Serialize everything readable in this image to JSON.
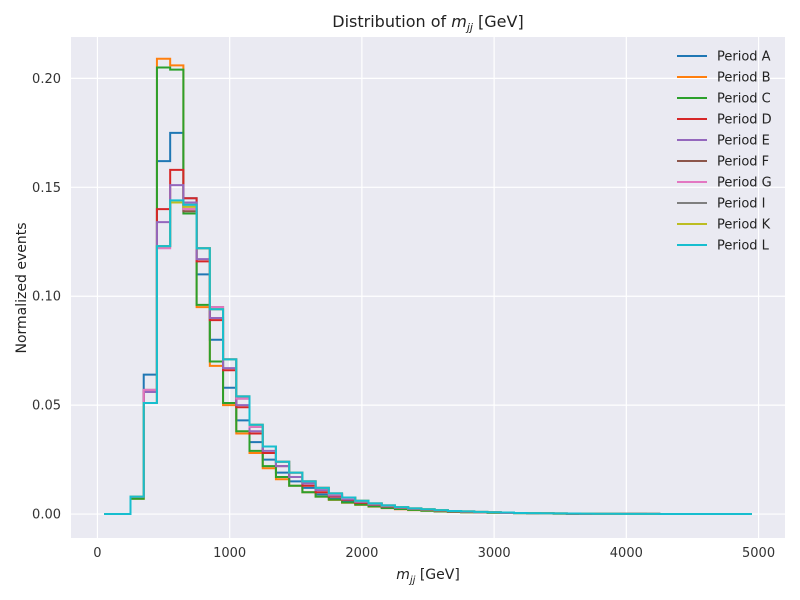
{
  "chart_data": {
    "type": "line",
    "title": "Distribution of m_jj [GeV]",
    "title_parts": {
      "prefix": "Distribution of ",
      "var": "m",
      "sub": "jj",
      "suffix": " [GeV]"
    },
    "xlabel": "m_jj [GeV]",
    "xlabel_parts": {
      "var": "m",
      "sub": "jj",
      "suffix": " [GeV]"
    },
    "ylabel": "Normalized events",
    "xlim": [
      -200,
      5200
    ],
    "ylim": [
      -0.011,
      0.219
    ],
    "xticks": [
      0,
      1000,
      2000,
      3000,
      4000,
      5000
    ],
    "xtick_labels": [
      "0",
      "1000",
      "2000",
      "3000",
      "4000",
      "5000"
    ],
    "yticks": [
      0.0,
      0.05,
      0.1,
      0.15,
      0.2
    ],
    "ytick_labels": [
      "0.00",
      "0.05",
      "0.10",
      "0.15",
      "0.20"
    ],
    "grid": true,
    "legend_position": "top-right",
    "bin_edges": [
      50,
      150,
      250,
      350,
      450,
      550,
      650,
      750,
      850,
      950,
      1050,
      1150,
      1250,
      1350,
      1450,
      1550,
      1650,
      1750,
      1850,
      1950,
      2050,
      2150,
      2250,
      2350,
      2450,
      2550,
      2650,
      2750,
      2850,
      2950,
      3050,
      3150,
      3250,
      3350,
      3450,
      3550,
      3650,
      3750,
      3850,
      3950,
      4050,
      4150,
      4250,
      4350,
      4450,
      4550,
      4650,
      4750,
      4850,
      4950
    ],
    "series": [
      {
        "name": "Period A",
        "color": "#1f77b4",
        "values": [
          0,
          0,
          0.008,
          0.064,
          0.162,
          0.175,
          0.145,
          0.11,
          0.08,
          0.058,
          0.043,
          0.033,
          0.025,
          0.019,
          0.015,
          0.012,
          0.009,
          0.007,
          0.0058,
          0.0046,
          0.0037,
          0.003,
          0.0024,
          0.002,
          0.0016,
          0.0013,
          0.0011,
          0.0009,
          0.0007,
          0.0006,
          0.0005,
          0.0004,
          0.0003,
          0.00026,
          0.0002,
          0.00016,
          0.00013,
          0.0001,
          8e-05,
          6e-05,
          5e-05,
          4e-05,
          3e-05,
          2e-05,
          2e-05,
          1e-05,
          1e-05,
          1e-05,
          0
        ]
      },
      {
        "name": "Period B",
        "color": "#ff7f0e",
        "values": [
          0,
          0,
          0.007,
          0.051,
          0.209,
          0.206,
          0.14,
          0.095,
          0.068,
          0.05,
          0.037,
          0.028,
          0.021,
          0.016,
          0.013,
          0.01,
          0.008,
          0.0065,
          0.0052,
          0.0042,
          0.0034,
          0.0027,
          0.0022,
          0.0018,
          0.0015,
          0.0012,
          0.001,
          0.0008,
          0.0007,
          0.0006,
          0.0005,
          0.0004,
          0.0003,
          0.00025,
          0.0002,
          0.00016,
          0.00013,
          0.0001,
          8e-05,
          6e-05,
          5e-05,
          4e-05,
          3e-05,
          2e-05,
          2e-05,
          1e-05,
          1e-05,
          1e-05,
          0
        ]
      },
      {
        "name": "Period C",
        "color": "#2ca02c",
        "values": [
          0,
          0,
          0.007,
          0.051,
          0.205,
          0.204,
          0.138,
          0.096,
          0.07,
          0.051,
          0.038,
          0.029,
          0.022,
          0.017,
          0.013,
          0.01,
          0.008,
          0.0066,
          0.0053,
          0.0043,
          0.0035,
          0.0028,
          0.0023,
          0.0019,
          0.0015,
          0.0012,
          0.001,
          0.0008,
          0.0007,
          0.0006,
          0.0005,
          0.0004,
          0.0003,
          0.00025,
          0.0002,
          0.00016,
          0.00013,
          0.0001,
          8e-05,
          6e-05,
          5e-05,
          4e-05,
          3e-05,
          2e-05,
          2e-05,
          1e-05,
          1e-05,
          1e-05,
          0
        ]
      },
      {
        "name": "Period D",
        "color": "#d62728",
        "values": [
          0,
          0,
          0.008,
          0.056,
          0.14,
          0.158,
          0.145,
          0.116,
          0.089,
          0.066,
          0.049,
          0.037,
          0.028,
          0.022,
          0.017,
          0.013,
          0.01,
          0.008,
          0.0065,
          0.0052,
          0.0042,
          0.0034,
          0.0028,
          0.0023,
          0.0019,
          0.0015,
          0.0012,
          0.001,
          0.0008,
          0.0007,
          0.0006,
          0.0005,
          0.0004,
          0.0003,
          0.00025,
          0.0002,
          0.00016,
          0.00013,
          0.0001,
          8e-05,
          6e-05,
          5e-05,
          4e-05,
          3e-05,
          2e-05,
          2e-05,
          1e-05,
          1e-05,
          0
        ]
      },
      {
        "name": "Period E",
        "color": "#9467bd",
        "values": [
          0,
          0,
          0.008,
          0.056,
          0.134,
          0.151,
          0.143,
          0.117,
          0.09,
          0.067,
          0.05,
          0.038,
          0.029,
          0.022,
          0.017,
          0.014,
          0.011,
          0.0085,
          0.0068,
          0.0055,
          0.0044,
          0.0036,
          0.0029,
          0.0024,
          0.002,
          0.0016,
          0.0013,
          0.0011,
          0.0009,
          0.0007,
          0.0006,
          0.0005,
          0.0004,
          0.00032,
          0.00026,
          0.0002,
          0.00016,
          0.00013,
          0.0001,
          8e-05,
          6e-05,
          5e-05,
          4e-05,
          3e-05,
          2e-05,
          2e-05,
          1e-05,
          1e-05,
          0
        ]
      },
      {
        "name": "Period F",
        "color": "#8c564b",
        "values": [
          0,
          0,
          0.008,
          0.057,
          0.123,
          0.143,
          0.139,
          0.122,
          0.095,
          0.071,
          0.053,
          0.04,
          0.031,
          0.024,
          0.019,
          0.015,
          0.012,
          0.009,
          0.0073,
          0.0059,
          0.0047,
          0.0038,
          0.0031,
          0.0025,
          0.0021,
          0.0017,
          0.0014,
          0.0011,
          0.0009,
          0.0008,
          0.0006,
          0.0005,
          0.0004,
          0.00034,
          0.00027,
          0.00022,
          0.00018,
          0.00014,
          0.00011,
          9e-05,
          7e-05,
          5e-05,
          4e-05,
          3e-05,
          2e-05,
          2e-05,
          1e-05,
          1e-05,
          0
        ]
      },
      {
        "name": "Period G",
        "color": "#e377c2",
        "values": [
          0,
          0,
          0.008,
          0.057,
          0.122,
          0.143,
          0.14,
          0.122,
          0.095,
          0.071,
          0.053,
          0.04,
          0.031,
          0.024,
          0.019,
          0.015,
          0.012,
          0.009,
          0.0073,
          0.0059,
          0.0047,
          0.0038,
          0.0031,
          0.0025,
          0.0021,
          0.0017,
          0.0014,
          0.0011,
          0.0009,
          0.0008,
          0.0006,
          0.0005,
          0.0004,
          0.00034,
          0.00027,
          0.00022,
          0.00018,
          0.00014,
          0.00011,
          9e-05,
          7e-05,
          5e-05,
          4e-05,
          3e-05,
          2e-05,
          2e-05,
          1e-05,
          1e-05,
          0
        ]
      },
      {
        "name": "Period I",
        "color": "#7f7f7f",
        "values": [
          0,
          0,
          0.008,
          0.051,
          0.123,
          0.143,
          0.142,
          0.122,
          0.094,
          0.071,
          0.054,
          0.041,
          0.031,
          0.024,
          0.019,
          0.015,
          0.012,
          0.0095,
          0.0076,
          0.0061,
          0.0049,
          0.004,
          0.0032,
          0.0026,
          0.0022,
          0.0018,
          0.0014,
          0.0012,
          0.001,
          0.0008,
          0.0007,
          0.0005,
          0.0004,
          0.00035,
          0.00028,
          0.00023,
          0.00018,
          0.00014,
          0.00011,
          9e-05,
          7e-05,
          5e-05,
          4e-05,
          3e-05,
          2e-05,
          2e-05,
          1e-05,
          1e-05,
          0
        ]
      },
      {
        "name": "Period K",
        "color": "#bcbd22",
        "values": [
          0,
          0,
          0.008,
          0.051,
          0.123,
          0.143,
          0.141,
          0.122,
          0.094,
          0.071,
          0.054,
          0.041,
          0.031,
          0.024,
          0.019,
          0.015,
          0.012,
          0.0095,
          0.0076,
          0.0061,
          0.0049,
          0.004,
          0.0032,
          0.0026,
          0.0022,
          0.0018,
          0.0014,
          0.0012,
          0.001,
          0.0008,
          0.0007,
          0.0005,
          0.0004,
          0.00035,
          0.00028,
          0.00023,
          0.00018,
          0.00014,
          0.00011,
          9e-05,
          7e-05,
          5e-05,
          4e-05,
          3e-05,
          2e-05,
          2e-05,
          1e-05,
          1e-05,
          0
        ]
      },
      {
        "name": "Period L",
        "color": "#17becf",
        "values": [
          0,
          0,
          0.008,
          0.051,
          0.123,
          0.144,
          0.142,
          0.122,
          0.094,
          0.071,
          0.054,
          0.041,
          0.031,
          0.024,
          0.019,
          0.015,
          0.012,
          0.0095,
          0.0076,
          0.0061,
          0.0049,
          0.004,
          0.0032,
          0.0026,
          0.0022,
          0.0018,
          0.0014,
          0.0012,
          0.001,
          0.0008,
          0.0007,
          0.0005,
          0.0004,
          0.00035,
          0.00028,
          0.00023,
          0.00018,
          0.00014,
          0.00011,
          9e-05,
          7e-05,
          5e-05,
          4e-05,
          3e-05,
          2e-05,
          2e-05,
          1e-05,
          1e-05,
          0
        ]
      }
    ]
  }
}
